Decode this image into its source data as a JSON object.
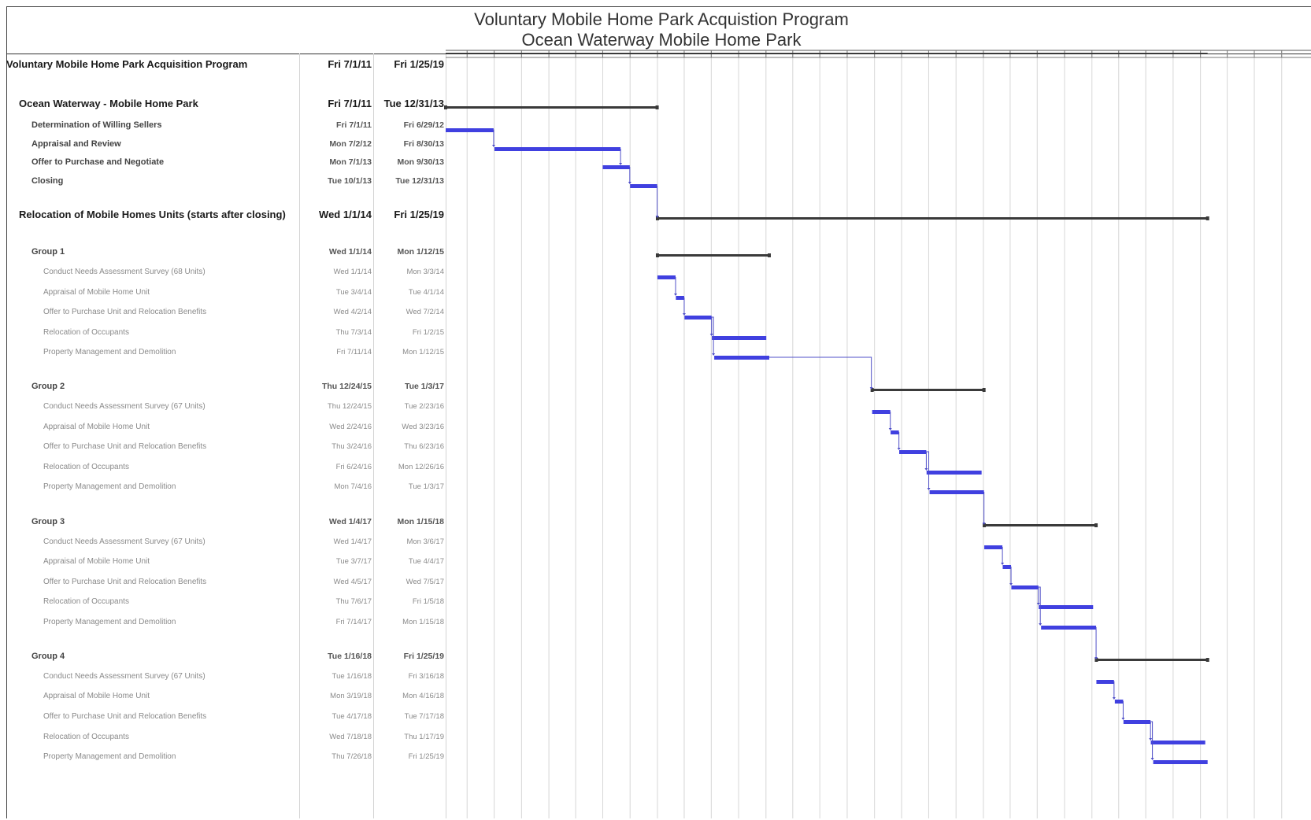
{
  "chart_data": {
    "type": "gantt",
    "title": "Voluntary Mobile Home Park Acquistion Program",
    "subtitle": "Ocean Waterway Mobile Home Park",
    "grid": true,
    "colors": {
      "task_bar": "#4040e0",
      "summary_bar": "#3a3a3a",
      "connector": "#5050c8",
      "grid": "#d6d6d6"
    },
    "tasks": [
      {
        "name": "Voluntary Mobile Home Park Acquisition Program",
        "start": "Fri 7/1/11",
        "finish": "Fri 1/25/19",
        "level": 0
      },
      {
        "name": "Ocean Waterway - Mobile Home Park",
        "start": "Fri 7/1/11",
        "finish": "Tue 12/31/13",
        "level": 1
      },
      {
        "name": "Determination of Willing Sellers",
        "start": "Fri 7/1/11",
        "finish": "Fri 6/29/12",
        "level": 2
      },
      {
        "name": "Appraisal and Review",
        "start": "Mon 7/2/12",
        "finish": "Fri 8/30/13",
        "level": 2
      },
      {
        "name": "Offer to Purchase and Negotiate",
        "start": "Mon 7/1/13",
        "finish": "Mon 9/30/13",
        "level": 2
      },
      {
        "name": "Closing",
        "start": "Tue 10/1/13",
        "finish": "Tue 12/31/13",
        "level": 2
      },
      {
        "name": "Relocation of Mobile Homes Units (starts after closing)",
        "start": "Wed 1/1/14",
        "finish": "Fri 1/25/19",
        "level": 1
      },
      {
        "name": "Group 1",
        "start": "Wed 1/1/14",
        "finish": "Mon 1/12/15",
        "level": 2
      },
      {
        "name": "Conduct Needs Assessment Survey (68 Units)",
        "start": "Wed 1/1/14",
        "finish": "Mon 3/3/14",
        "level": 3
      },
      {
        "name": "Appraisal of Mobile Home Unit",
        "start": "Tue 3/4/14",
        "finish": "Tue 4/1/14",
        "level": 3
      },
      {
        "name": "Offer to Purchase Unit and Relocation Benefits",
        "start": "Wed 4/2/14",
        "finish": "Wed 7/2/14",
        "level": 3
      },
      {
        "name": "Relocation of Occupants",
        "start": "Thu 7/3/14",
        "finish": "Fri 1/2/15",
        "level": 3
      },
      {
        "name": "Property Management and Demolition",
        "start": "Fri 7/11/14",
        "finish": "Mon 1/12/15",
        "level": 3
      },
      {
        "name": "Group 2",
        "start": "Thu 12/24/15",
        "finish": "Tue 1/3/17",
        "level": 2
      },
      {
        "name": "Conduct Needs Assessment Survey (67 Units)",
        "start": "Thu 12/24/15",
        "finish": "Tue 2/23/16",
        "level": 3
      },
      {
        "name": "Appraisal of Mobile Home Unit",
        "start": "Wed 2/24/16",
        "finish": "Wed 3/23/16",
        "level": 3
      },
      {
        "name": "Offer to Purchase Unit and Relocation Benefits",
        "start": "Thu 3/24/16",
        "finish": "Thu 6/23/16",
        "level": 3
      },
      {
        "name": "Relocation of Occupants",
        "start": "Fri 6/24/16",
        "finish": "Mon 12/26/16",
        "level": 3
      },
      {
        "name": "Property Management and Demolition",
        "start": "Mon 7/4/16",
        "finish": "Tue 1/3/17",
        "level": 3
      },
      {
        "name": "Group 3",
        "start": "Wed 1/4/17",
        "finish": "Mon 1/15/18",
        "level": 2
      },
      {
        "name": "Conduct Needs Assessment Survey (67 Units)",
        "start": "Wed 1/4/17",
        "finish": "Mon 3/6/17",
        "level": 3
      },
      {
        "name": "Appraisal of Mobile Home Unit",
        "start": "Tue 3/7/17",
        "finish": "Tue 4/4/17",
        "level": 3
      },
      {
        "name": "Offer to Purchase Unit and Relocation Benefits",
        "start": "Wed 4/5/17",
        "finish": "Wed 7/5/17",
        "level": 3
      },
      {
        "name": "Relocation of Occupants",
        "start": "Thu 7/6/17",
        "finish": "Fri 1/5/18",
        "level": 3
      },
      {
        "name": "Property Management and Demolition",
        "start": "Fri 7/14/17",
        "finish": "Mon 1/15/18",
        "level": 3
      },
      {
        "name": "Group 4",
        "start": "Tue 1/16/18",
        "finish": "Fri 1/25/19",
        "level": 2
      },
      {
        "name": "Conduct Needs Assessment Survey (67 Units)",
        "start": "Tue 1/16/18",
        "finish": "Fri 3/16/18",
        "level": 3
      },
      {
        "name": "Appraisal of Mobile Home Unit",
        "start": "Mon 3/19/18",
        "finish": "Mon 4/16/18",
        "level": 3
      },
      {
        "name": "Offer to Purchase Unit and Relocation Benefits",
        "start": "Tue 4/17/18",
        "finish": "Tue 7/17/18",
        "level": 3
      },
      {
        "name": "Relocation of Occupants",
        "start": "Wed 7/18/18",
        "finish": "Thu 1/17/19",
        "level": 3
      },
      {
        "name": "Property Management and Demolition",
        "start": "Thu 7/26/18",
        "finish": "Fri 1/25/19",
        "level": 3
      }
    ]
  }
}
